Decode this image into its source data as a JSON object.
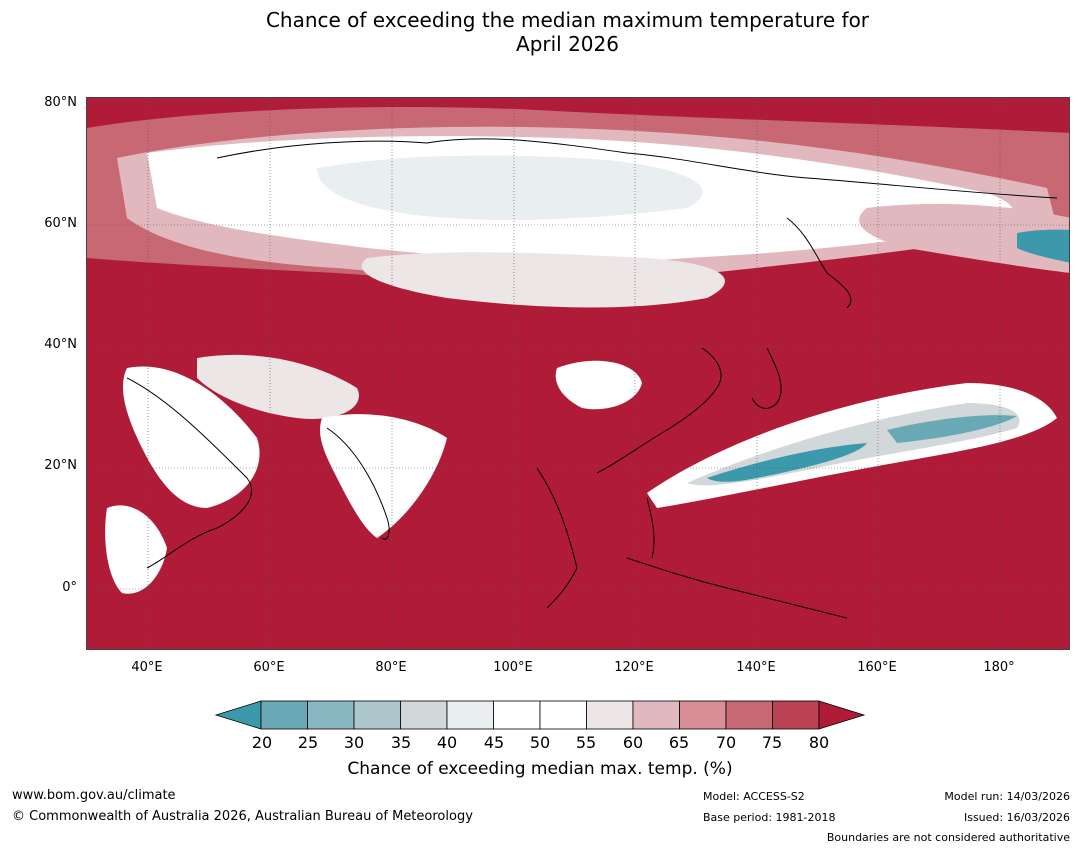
{
  "title": {
    "line1": "Chance of exceeding the median maximum temperature for",
    "line2": "April 2026"
  },
  "map": {
    "lat_labels": [
      "80°N",
      "60°N",
      "40°N",
      "20°N",
      "0°"
    ],
    "lon_labels": [
      "40°E",
      "60°E",
      "80°E",
      "100°E",
      "120°E",
      "140°E",
      "160°E",
      "180°"
    ],
    "extent": {
      "lon_min": 30,
      "lon_max": 192,
      "lat_min": -10,
      "lat_max": 81
    }
  },
  "colorbar": {
    "ticks": [
      "20",
      "25",
      "30",
      "35",
      "40",
      "45",
      "50",
      "55",
      "60",
      "65",
      "70",
      "75",
      "80"
    ],
    "colors": [
      "#3c98ab",
      "#69a9b6",
      "#8ab8c2",
      "#aec7cc",
      "#d2d8d9",
      "#e9eef0",
      "#ffffff",
      "#ffffff",
      "#ece6e7",
      "#e2b8bf",
      "#d88d97",
      "#c86872",
      "#bb4252",
      "#b01c38"
    ],
    "label": "Chance of exceeding median max. temp. (%)"
  },
  "footer": {
    "website": "www.bom.gov.au/climate",
    "copyright": "© Commonwealth of Australia 2026, Australian Bureau of Meteorology",
    "model": "Model: ACCESS-S2",
    "base_period": "Base period: 1981-2018",
    "model_run": "Model run: 14/03/2026",
    "issued": "Issued: 16/03/2026",
    "disclaimer": "Boundaries are not considered authoritative"
  }
}
